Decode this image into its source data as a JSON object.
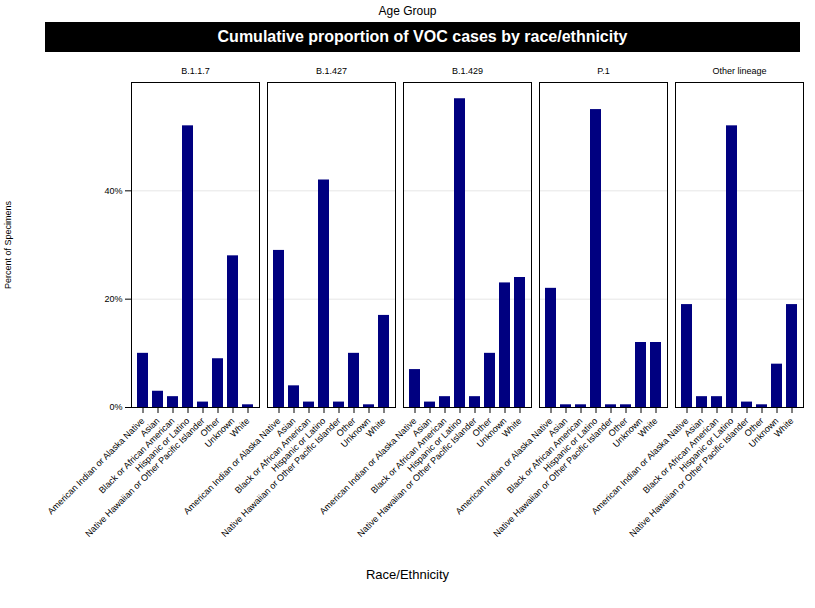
{
  "chart_data": {
    "type": "bar",
    "subtitle": "Age Group",
    "title": "Cumulative proportion of VOC cases by race/ethnicity",
    "xlabel": "Race/Ethnicity",
    "ylabel": "Percent of Specimens",
    "categories": [
      "American Indian or Alaska Native",
      "Asian",
      "Black or African American",
      "Hispanic or Latino",
      "Native Hawaiian or Other Pacific Islander",
      "Other",
      "Unknown",
      "White"
    ],
    "series": [
      {
        "name": "B.1.1.7",
        "values": [
          0.1,
          0.03,
          0.02,
          0.52,
          0.01,
          0.09,
          0.28,
          0.005
        ]
      },
      {
        "name": "B.1.427",
        "values": [
          0.29,
          0.04,
          0.01,
          0.42,
          0.01,
          0.1,
          0.005,
          0.17
        ]
      },
      {
        "name": "B.1.429",
        "values": [
          0.07,
          0.01,
          0.02,
          0.57,
          0.02,
          0.1,
          0.23,
          0.24
        ]
      },
      {
        "name": "P.1",
        "values": [
          0.22,
          0.005,
          0.005,
          0.55,
          0.005,
          0.005,
          0.12,
          0.12
        ]
      },
      {
        "name": "Other lineage",
        "values": [
          0.19,
          0.02,
          0.02,
          0.52,
          0.01,
          0.005,
          0.08,
          0.19
        ]
      }
    ],
    "color": "#000080",
    "ylim": [
      0,
      0.6
    ],
    "yticks": [
      {
        "value": 0.0,
        "label": "0%"
      },
      {
        "value": 0.2,
        "label": "20%"
      },
      {
        "value": 0.4,
        "label": "40%"
      }
    ],
    "grid": true
  }
}
